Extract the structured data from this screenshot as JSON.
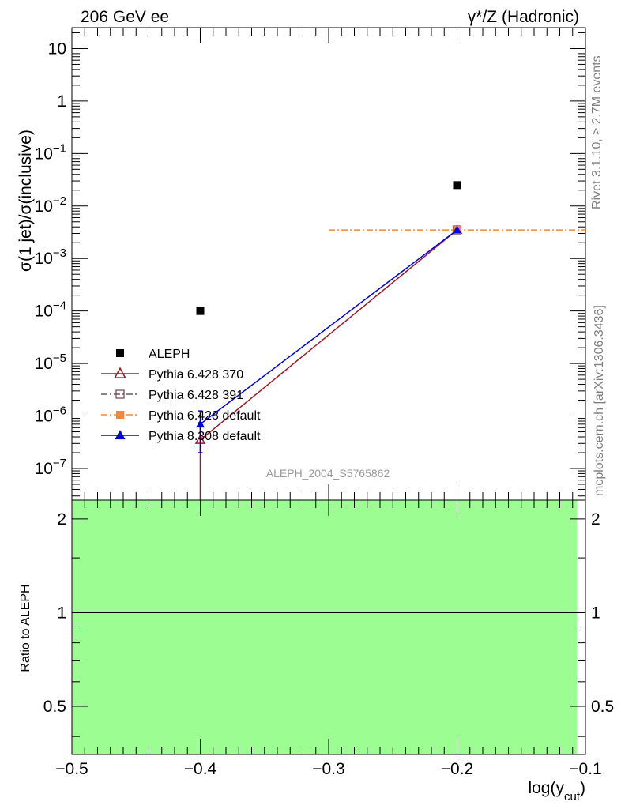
{
  "header": {
    "left": "206 GeV ee",
    "right": "γ*/Z (Hadronic)"
  },
  "side_labels": {
    "rivet": "Rivet 3.1.10, ≥ 2.7M events",
    "mcplots": "mcplots.cern.ch [arXiv:1306.3436]"
  },
  "watermark": "ALEPH_2004_S5765862",
  "chart_data": [
    {
      "panel": "main",
      "type": "scatter",
      "ylabel": "σ(1 jet)/σ(inclusive)",
      "yscale": "log",
      "xlim": [
        -0.5,
        -0.1
      ],
      "ylim": [
        2.5e-08,
        25
      ],
      "ytick_labels": [
        "10^-7",
        "10^-6",
        "10^-5",
        "10^-4",
        "10^-3",
        "10^-2",
        "10^-1",
        "1",
        "10"
      ],
      "legend_position": "lower-left",
      "series": [
        {
          "name": "ALEPH",
          "color": "#000000",
          "marker": "square-filled",
          "points": [
            {
              "x": -0.4,
              "y": 0.0001
            },
            {
              "x": -0.2,
              "y": 0.025
            }
          ]
        },
        {
          "name": "Pythia 6.428 370",
          "color": "#9a1b23",
          "marker": "triangle-open",
          "line": "solid",
          "points": [
            {
              "x": -0.4,
              "y": 3.5e-07,
              "ylow": 1e-09,
              "yhigh": 7.5e-07
            },
            {
              "x": -0.2,
              "y": 0.0035
            }
          ]
        },
        {
          "name": "Pythia 6.428 391",
          "color": "#7a4d5d",
          "marker": "square-open",
          "line": "dashdot",
          "points": [
            {
              "x": -0.2,
              "y": 0.0035
            }
          ]
        },
        {
          "name": "Pythia 6.428 default",
          "color": "#f5853a",
          "marker": "square-filled",
          "line": "dashdot",
          "points": [
            {
              "x": -0.2,
              "y": 0.0035,
              "xlow": -0.3,
              "xhigh": -0.1
            }
          ]
        },
        {
          "name": "Pythia 8.308 default",
          "color": "#0000dd",
          "marker": "triangle-filled",
          "line": "solid",
          "points": [
            {
              "x": -0.4,
              "y": 7e-07,
              "ylow": 2e-07,
              "yhigh": 1.25e-06
            },
            {
              "x": -0.2,
              "y": 0.0035
            }
          ]
        }
      ]
    },
    {
      "panel": "ratio",
      "type": "line",
      "ylabel": "Ratio to ALEPH",
      "xlabel": "log(y_cut)",
      "yscale": "log",
      "xlim": [
        -0.5,
        -0.1
      ],
      "ylim": [
        0.35,
        2.3
      ],
      "xtick_labels": [
        "−0.5",
        "−0.4",
        "−0.3",
        "−0.2",
        "−0.1"
      ],
      "ytick_labels": [
        "0.5",
        "1",
        "2"
      ],
      "band": {
        "color": "#9cfd93",
        "x": [
          -0.5,
          -0.1
        ],
        "y": [
          0.35,
          2.3
        ]
      },
      "reference_line": 1
    }
  ]
}
